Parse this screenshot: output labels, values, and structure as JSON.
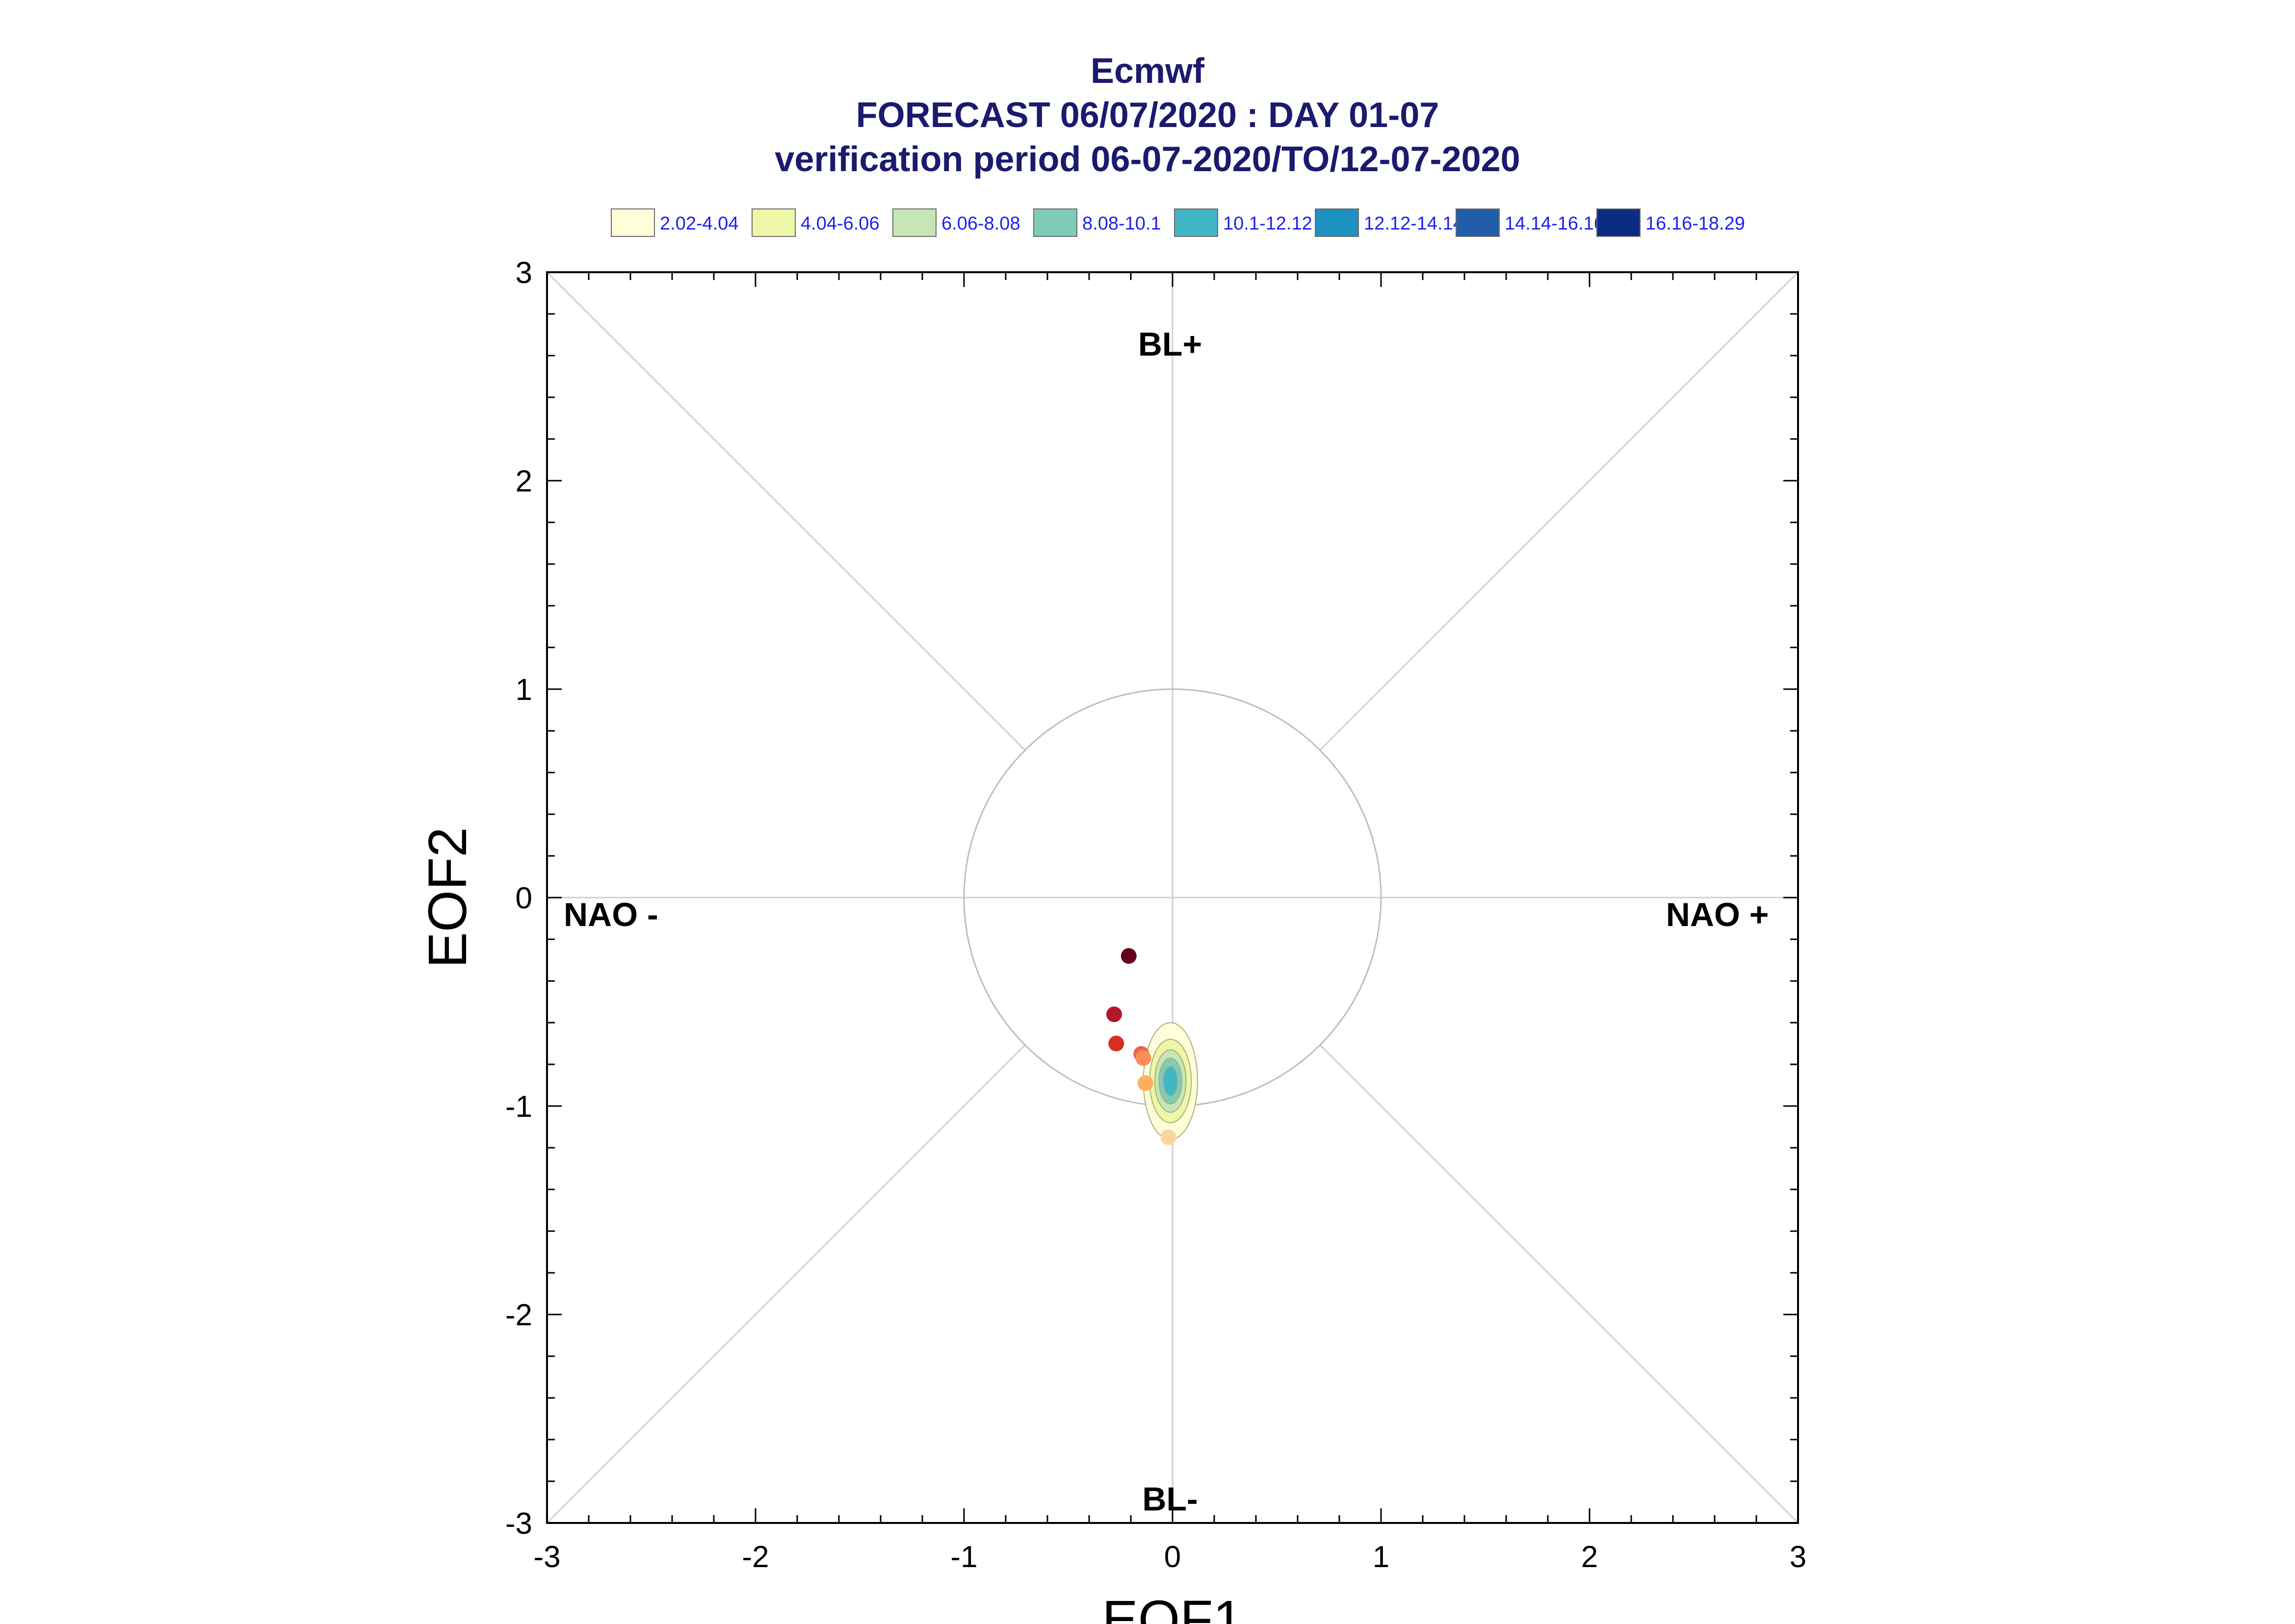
{
  "header": {
    "title": "Ecmwf",
    "subtitle": "FORECAST 06/07/2020 : DAY 01-07",
    "period": "verification period 06-07-2020/TO/12-07-2020"
  },
  "legend": [
    {
      "label": "2.02-4.04",
      "color": "#fefed8"
    },
    {
      "label": "4.04-6.06",
      "color": "#eef7a8"
    },
    {
      "label": "6.06-8.08",
      "color": "#c6e7b5"
    },
    {
      "label": "8.08-10.1",
      "color": "#7fcbb9"
    },
    {
      "label": "10.1-12.12",
      "color": "#41b6c4"
    },
    {
      "label": "12.12-14.14",
      "color": "#1d91c0"
    },
    {
      "label": "14.14-16.16",
      "color": "#225ea8"
    },
    {
      "label": "16.16-18.29",
      "color": "#0c2c84"
    }
  ],
  "chart_data": {
    "type": "scatter",
    "xlabel": "EOF1",
    "ylabel": "EOF2",
    "xlim": [
      -3,
      3
    ],
    "ylim": [
      -3,
      3
    ],
    "xticks": [
      "-3",
      "-2",
      "-1",
      "0",
      "1",
      "2",
      "3"
    ],
    "yticks": [
      "-3",
      "-2",
      "-1",
      "0",
      "1",
      "2",
      "3"
    ],
    "regime_labels": {
      "top": "BL+",
      "bottom": "BL-",
      "left": "NAO -",
      "right": "NAO +"
    },
    "unit_circle_radius": 1,
    "points": [
      {
        "x": -0.21,
        "y": -0.28,
        "color": "#67001f"
      },
      {
        "x": -0.28,
        "y": -0.56,
        "color": "#b2182b"
      },
      {
        "x": -0.27,
        "y": -0.7,
        "color": "#d7301f"
      },
      {
        "x": -0.15,
        "y": -0.75,
        "color": "#ef6548"
      },
      {
        "x": -0.14,
        "y": -0.77,
        "color": "#fc8d59"
      },
      {
        "x": -0.13,
        "y": -0.89,
        "color": "#fdae61"
      },
      {
        "x": -0.02,
        "y": -1.15,
        "color": "#fdd49e"
      }
    ],
    "density": {
      "center": [
        -0.01,
        -0.88
      ],
      "levels": [
        {
          "rx": 0.13,
          "ry": 0.28,
          "color": "#fefed8"
        },
        {
          "rx": 0.1,
          "ry": 0.2,
          "color": "#eef7a8"
        },
        {
          "rx": 0.075,
          "ry": 0.15,
          "color": "#c6e7b5"
        },
        {
          "rx": 0.055,
          "ry": 0.11,
          "color": "#7fcbb9"
        },
        {
          "rx": 0.035,
          "ry": 0.07,
          "color": "#41b6c4"
        }
      ]
    }
  }
}
